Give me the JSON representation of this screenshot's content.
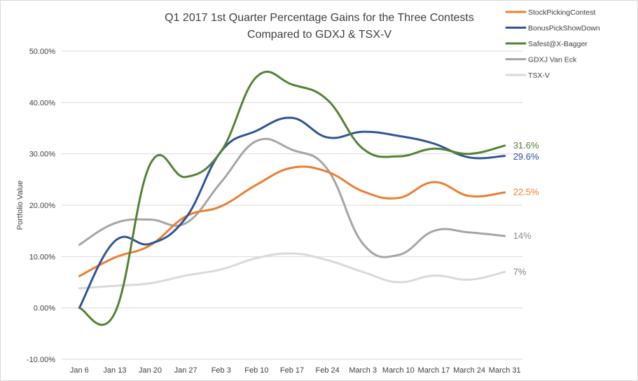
{
  "chart_data": {
    "type": "line",
    "title_lines": [
      "Q1 2017 1st Quarter Percentage Gains for the Three Contests",
      "Compared to GDXJ & TSX-V"
    ],
    "ylabel": "Portfolio Value",
    "xlabel": "",
    "categories": [
      "Jan 6",
      "Jan 13",
      "Jan 20",
      "Jan 27",
      "Feb 3",
      "Feb 10",
      "Feb 17",
      "Feb 24",
      "March 3",
      "March 10",
      "March 17",
      "March 24",
      "March 31"
    ],
    "ylim": [
      -10,
      50
    ],
    "yticks": [
      -10,
      0,
      10,
      20,
      30,
      40,
      50
    ],
    "ytick_labels": [
      "-10.00%",
      "0.00%",
      "10.00%",
      "20.00%",
      "30.00%",
      "40.00%",
      "50.00%"
    ],
    "grid": true,
    "legend_position": "top-right",
    "series": [
      {
        "name": "StockPickingContest",
        "color": "#ed7d31",
        "end_label": "22.5%",
        "values": [
          6.2,
          9.8,
          12.2,
          17.8,
          19.8,
          24.0,
          27.3,
          26.5,
          22.7,
          21.4,
          24.5,
          21.8,
          22.5
        ]
      },
      {
        "name": "BonusPickShowDown",
        "color": "#2f5597",
        "end_label": "29.6%",
        "values": [
          0.0,
          13.0,
          12.5,
          17.5,
          30.5,
          34.5,
          37.0,
          33.2,
          34.3,
          33.5,
          32.0,
          29.3,
          29.6
        ]
      },
      {
        "name": "Safest@X-Bagger",
        "color": "#548235",
        "end_label": "31.6%",
        "values": [
          0.0,
          -1.0,
          28.0,
          25.5,
          30.5,
          45.0,
          43.5,
          40.5,
          31.0,
          29.5,
          31.0,
          30.0,
          31.6
        ]
      },
      {
        "name": "GDXJ Van Eck",
        "color": "#a5a5a5",
        "end_label": "14%",
        "values": [
          12.3,
          16.5,
          17.2,
          16.5,
          24.5,
          32.5,
          30.8,
          27.0,
          12.5,
          10.3,
          15.0,
          14.7,
          14.0
        ]
      },
      {
        "name": "TSX-V",
        "color": "#d9d9d9",
        "end_label": "7%",
        "values": [
          3.8,
          4.3,
          4.8,
          6.3,
          7.5,
          9.7,
          10.6,
          9.3,
          7.0,
          5.0,
          6.3,
          5.5,
          7.0
        ]
      }
    ]
  }
}
